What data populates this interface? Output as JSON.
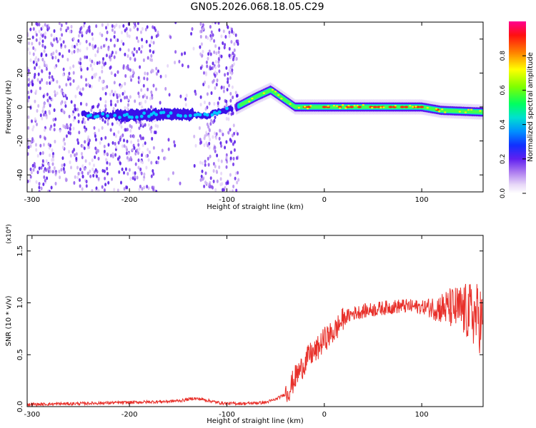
{
  "title": "GN05.2026.068.18.05.C29",
  "colors": {
    "snr_line": "#e8302a",
    "frame": "#000000"
  },
  "chart_data": [
    {
      "type": "heatmap",
      "name": "spectrogram",
      "xlabel": "Height of straight line (km)",
      "ylabel": "Frequency (Hz)",
      "xlim": [
        -305,
        163
      ],
      "ylim": [
        -50,
        50
      ],
      "xticks": [
        -300,
        -200,
        -100,
        0,
        100
      ],
      "yticks": [
        -40,
        -20,
        0,
        20,
        40
      ],
      "colorbar": {
        "label": "Normalized spectral amplitude",
        "range": [
          0,
          1
        ],
        "ticks": [
          "0.0",
          "0.2",
          "0.4",
          "0.6",
          "0.8"
        ],
        "colormap": [
          "#ffffff",
          "#e0c8f5",
          "#a060f0",
          "#5010f0",
          "#0040ff",
          "#00c0ff",
          "#00ff80",
          "#60ff00",
          "#ffff00",
          "#ff8000",
          "#ff0000",
          "#ff00a0"
        ]
      },
      "ridge": {
        "description_points_x": [
          -245,
          -200,
          -150,
          -120,
          -90,
          -70,
          -55,
          -45,
          -30,
          0,
          50,
          100,
          120,
          163
        ],
        "description_points_freq": [
          -5,
          -5,
          -4,
          -5,
          0,
          6,
          10,
          6,
          0,
          0,
          0,
          0,
          -2,
          -3
        ]
      }
    },
    {
      "type": "line",
      "name": "snr",
      "xlabel": "Height of straight line (km)",
      "ylabel": "SNR (10 * v/v)",
      "y_multiplier": "(x10⁴)",
      "xlim": [
        -305,
        163
      ],
      "ylim": [
        0,
        1.65
      ],
      "xticks": [
        -300,
        -200,
        -100,
        0,
        100
      ],
      "yticks": [
        0.0,
        0.5,
        1.0,
        1.5
      ],
      "ytick_labels": [
        "0.0",
        "0.5",
        "1.0",
        "1.5"
      ],
      "series": [
        {
          "name": "SNR",
          "x": [
            -305,
            -250,
            -200,
            -160,
            -145,
            -135,
            -125,
            -110,
            -100,
            -80,
            -60,
            -50,
            -40,
            -35,
            -30,
            -25,
            -20,
            -15,
            -10,
            -5,
            0,
            10,
            20,
            30,
            40,
            60,
            80,
            100,
            120,
            130,
            140,
            150,
            160,
            163
          ],
          "y": [
            0.02,
            0.03,
            0.04,
            0.05,
            0.06,
            0.08,
            0.07,
            0.04,
            0.03,
            0.03,
            0.04,
            0.07,
            0.12,
            0.18,
            0.28,
            0.35,
            0.42,
            0.5,
            0.52,
            0.58,
            0.65,
            0.72,
            0.85,
            0.9,
            0.92,
            0.95,
            0.97,
            0.96,
            0.95,
            0.95,
            0.93,
            0.9,
            0.85,
            0.8
          ]
        }
      ]
    }
  ]
}
